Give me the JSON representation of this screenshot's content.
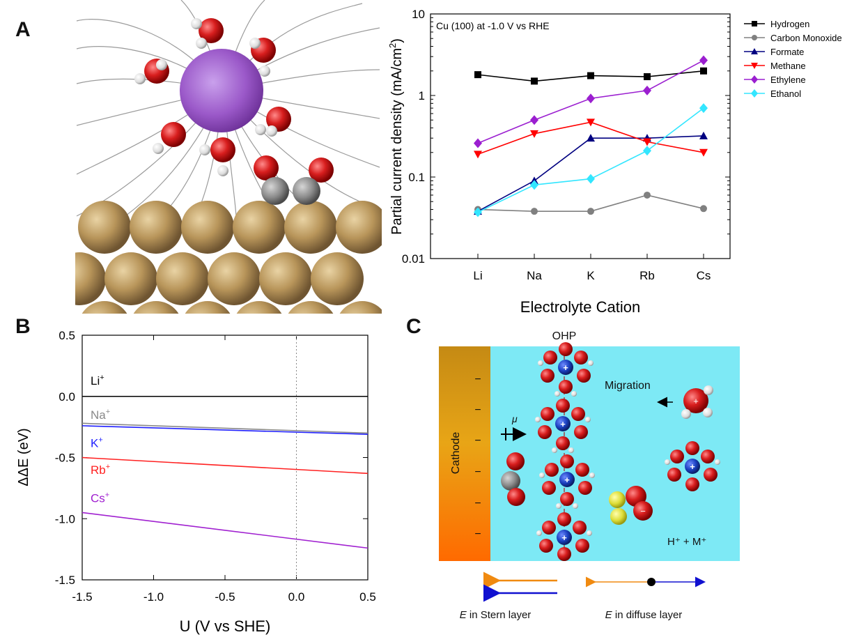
{
  "panels": {
    "a": "A",
    "b": "B",
    "c": "C"
  },
  "colors": {
    "copper": "#b8955a",
    "oxygen": "#d81e1e",
    "hydrogen": "#f0f0f0",
    "carbon": "#8a8a8a",
    "cation": "#9b59c9",
    "cation_blue": "#1a3fbf",
    "electrolyte": "#7de9f5",
    "sulfur": "#dede3a"
  },
  "chart_data": [
    {
      "type": "line",
      "title": "Cu (100) at -1.0 V vs RHE",
      "xlabel": "Electrolyte Cation",
      "ylabel": "Partial current density (mA/cm",
      "ylabel_sup": "2",
      "ylabel_close": ")",
      "yscale": "log",
      "ylim": [
        0.01,
        10
      ],
      "yticks": [
        {
          "v": 0.01,
          "label": "0.01"
        },
        {
          "v": 0.1,
          "label": "0.1"
        },
        {
          "v": 1,
          "label": "1"
        },
        {
          "v": 10,
          "label": "10"
        }
      ],
      "categories": [
        "Li",
        "Na",
        "K",
        "Rb",
        "Cs"
      ],
      "legend_position": "outside-right",
      "series": [
        {
          "name": "Hydrogen",
          "color": "#000000",
          "marker": "square",
          "values": [
            1.8,
            1.5,
            1.75,
            1.7,
            2.0
          ]
        },
        {
          "name": "Carbon Monoxide",
          "color": "#808080",
          "marker": "circle",
          "values": [
            0.04,
            0.038,
            0.038,
            0.06,
            0.041
          ]
        },
        {
          "name": "Formate",
          "color": "#000080",
          "marker": "triangle-up",
          "values": [
            0.038,
            0.09,
            0.3,
            0.3,
            0.32
          ]
        },
        {
          "name": "Methane",
          "color": "#ff0000",
          "marker": "triangle-down",
          "values": [
            0.19,
            0.34,
            0.47,
            0.27,
            0.2
          ]
        },
        {
          "name": "Ethylene",
          "color": "#9b1fd0",
          "marker": "diamond",
          "values": [
            0.26,
            0.5,
            0.92,
            1.15,
            2.7
          ]
        },
        {
          "name": "Ethanol",
          "color": "#33e6ff",
          "marker": "diamond",
          "values": [
            0.037,
            0.08,
            0.095,
            0.21,
            0.7
          ]
        }
      ]
    },
    {
      "type": "line",
      "title": "",
      "xlabel": "U (V vs SHE)",
      "ylabel": "ΔΔE (eV)",
      "xlim": [
        -1.5,
        0.5
      ],
      "ylim": [
        -1.5,
        0.5
      ],
      "xticks": [
        {
          "v": -1.5,
          "label": "-1.5"
        },
        {
          "v": -1.0,
          "label": "-1.0"
        },
        {
          "v": -0.5,
          "label": "-0.5"
        },
        {
          "v": 0.0,
          "label": "0.0"
        },
        {
          "v": 0.5,
          "label": "0.5"
        }
      ],
      "yticks": [
        {
          "v": 0.5,
          "label": "0.5"
        },
        {
          "v": 0.0,
          "label": "0.0"
        },
        {
          "v": -0.5,
          "label": "-0.5"
        },
        {
          "v": -1.0,
          "label": "-1.0"
        },
        {
          "v": -1.5,
          "label": "-1.5"
        }
      ],
      "reference_line_x": 0.0,
      "series": [
        {
          "name": "Li",
          "sup": "+",
          "color": "#000000",
          "x": [
            -1.5,
            0.5
          ],
          "y": [
            0.0,
            0.0
          ],
          "label_at": 0.13
        },
        {
          "name": "Na",
          "sup": "+",
          "color": "#888888",
          "x": [
            -1.5,
            0.5
          ],
          "y": [
            -0.22,
            -0.3
          ],
          "label_at": -0.15
        },
        {
          "name": "K",
          "sup": "+",
          "color": "#1f1fff",
          "x": [
            -1.5,
            0.5
          ],
          "y": [
            -0.24,
            -0.31
          ],
          "label_at": -0.38
        },
        {
          "name": "Rb",
          "sup": "+",
          "color": "#ff2020",
          "x": [
            -1.5,
            0.5
          ],
          "y": [
            -0.5,
            -0.63
          ],
          "label_at": -0.6
        },
        {
          "name": "Cs",
          "sup": "+",
          "color": "#a020d0",
          "x": [
            -1.5,
            0.5
          ],
          "y": [
            -0.95,
            -1.24
          ],
          "label_at": -0.83
        }
      ]
    }
  ],
  "diagram_c": {
    "ohp_label": "OHP",
    "cathode_label": "Cathode",
    "migration_label": "Migration",
    "mu_label": "μ",
    "h_m_label": "H⁺ + M⁺",
    "stern_italic": "E",
    "stern_rest": " in Stern layer",
    "diffuse_italic": "E",
    "diffuse_rest": " in diffuse layer",
    "minus_sign": "−",
    "plus_sign": "+"
  }
}
